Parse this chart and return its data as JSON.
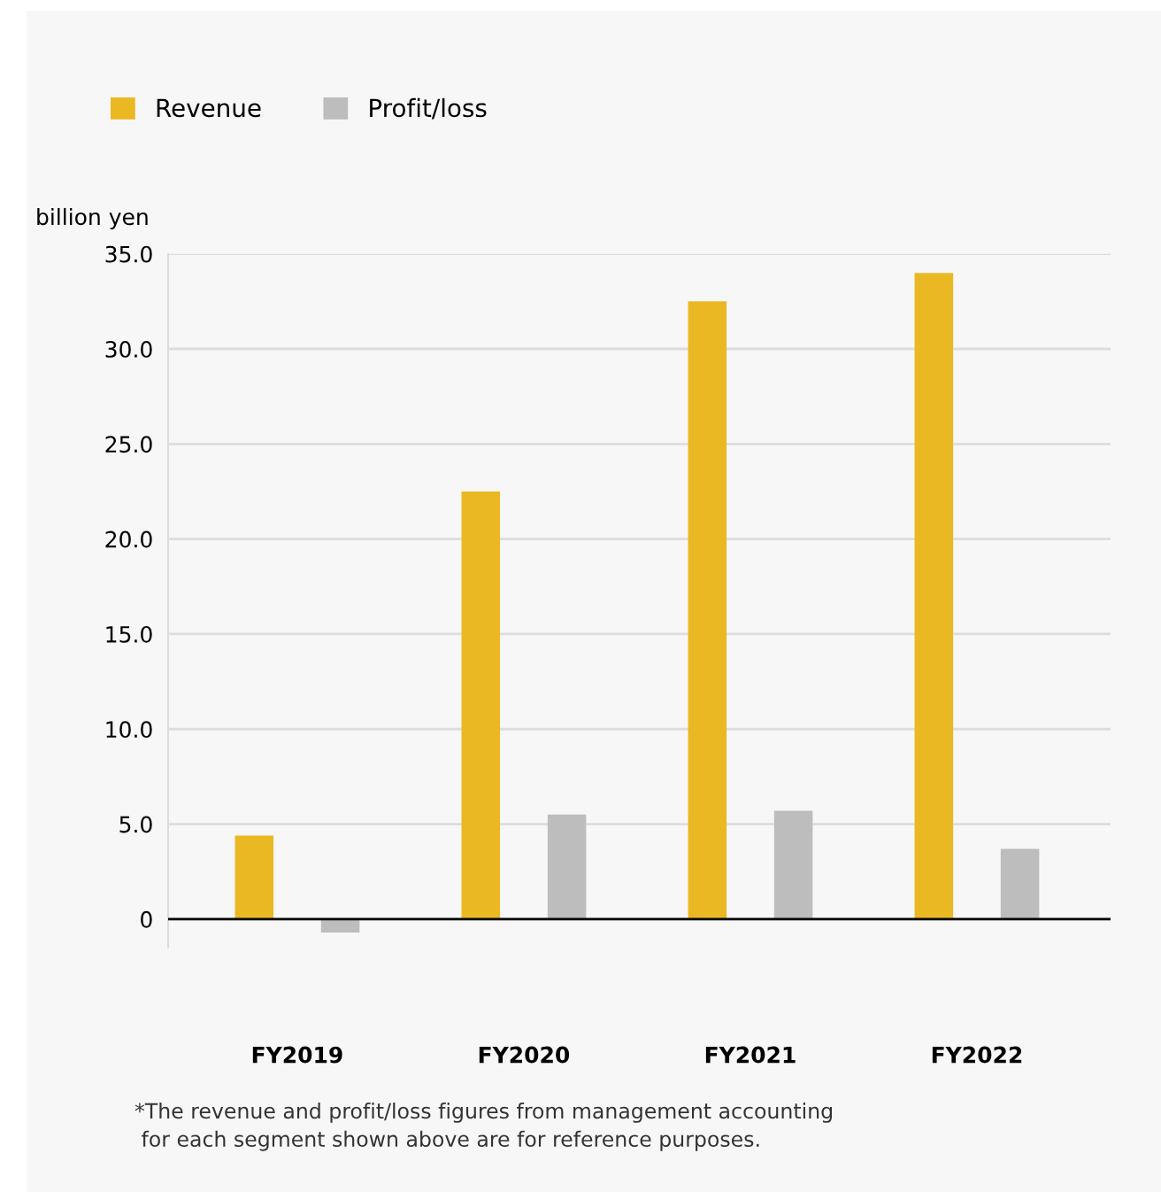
{
  "chart_data": {
    "type": "bar",
    "categories": [
      "FY2019",
      "FY2020",
      "FY2021",
      "FY2022"
    ],
    "series": [
      {
        "name": "Revenue",
        "color": "#eab823",
        "values": [
          4.4,
          22.5,
          32.5,
          34.0
        ]
      },
      {
        "name": "Profit/loss",
        "color": "#bdbdbd",
        "values": [
          -0.7,
          5.5,
          5.7,
          3.7
        ]
      }
    ],
    "ylabel": "billion yen",
    "ylim": [
      -1.5,
      35
    ],
    "yticks": [
      {
        "value": 0,
        "label": "0"
      },
      {
        "value": 5,
        "label": "5.0"
      },
      {
        "value": 10,
        "label": "10.0"
      },
      {
        "value": 15,
        "label": "15.0"
      },
      {
        "value": 20,
        "label": "20.0"
      },
      {
        "value": 25,
        "label": "25.0"
      },
      {
        "value": 30,
        "label": "30.0"
      },
      {
        "value": 35,
        "label": "35.0"
      }
    ],
    "grid": "y",
    "legend": "top left",
    "ref_lines": [
      {
        "axis": "y",
        "value": 0,
        "label": null,
        "color": "#000000"
      }
    ],
    "annotations": [
      "*The revenue and profit/loss figures from management accounting\n for each segment shown above are for reference purposes."
    ]
  }
}
